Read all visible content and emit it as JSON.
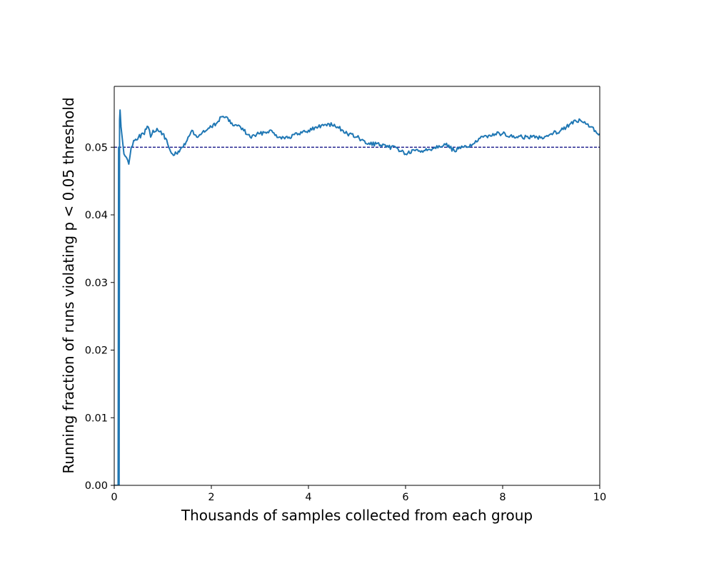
{
  "chart_data": {
    "type": "line",
    "title": "",
    "xlabel": "Thousands of samples collected from each group",
    "ylabel": "Running fraction of runs violating p < 0.05 threshold",
    "xlim": [
      0,
      10
    ],
    "ylim": [
      0,
      0.059
    ],
    "x_ticks": [
      0,
      2,
      4,
      6,
      8,
      10
    ],
    "x_tick_labels": [
      "0",
      "2",
      "4",
      "6",
      "8",
      "10"
    ],
    "y_ticks": [
      0,
      0.01,
      0.02,
      0.03,
      0.04,
      0.05
    ],
    "y_tick_labels": [
      "0.00",
      "0.01",
      "0.02",
      "0.03",
      "0.04",
      "0.05"
    ],
    "grid": false,
    "reference_line": {
      "y": 0.05,
      "style": "dashed",
      "color": "#00007f"
    },
    "series": [
      {
        "color": "#1f77b4",
        "x": [
          0.0,
          0.02,
          0.05,
          0.07,
          0.08,
          0.09,
          0.1,
          0.11,
          0.12,
          0.14,
          0.17,
          0.2,
          0.25,
          0.3,
          0.35,
          0.4,
          0.5,
          0.6,
          0.7,
          0.75,
          0.8,
          0.9,
          1.0,
          1.1,
          1.2,
          1.3,
          1.4,
          1.5,
          1.6,
          1.7,
          1.8,
          1.9,
          2.0,
          2.1,
          2.2,
          2.3,
          2.4,
          2.6,
          2.8,
          3.0,
          3.2,
          3.4,
          3.6,
          3.8,
          4.0,
          4.2,
          4.4,
          4.6,
          4.8,
          5.0,
          5.2,
          5.4,
          5.6,
          5.8,
          6.0,
          6.2,
          6.4,
          6.6,
          6.8,
          7.0,
          7.2,
          7.4,
          7.6,
          7.8,
          8.0,
          8.2,
          8.4,
          8.6,
          8.8,
          9.0,
          9.2,
          9.4,
          9.6,
          9.8,
          10.0
        ],
        "y": [
          0.0,
          0.0,
          0.0,
          0.0,
          0.0,
          0.05,
          0.0,
          0.054,
          0.0555,
          0.053,
          0.051,
          0.049,
          0.0485,
          0.0475,
          0.05,
          0.051,
          0.0515,
          0.052,
          0.053,
          0.0515,
          0.0525,
          0.0525,
          0.052,
          0.0505,
          0.049,
          0.049,
          0.05,
          0.051,
          0.0525,
          0.0515,
          0.052,
          0.0525,
          0.053,
          0.0535,
          0.0545,
          0.0545,
          0.0535,
          0.053,
          0.0515,
          0.052,
          0.0525,
          0.0515,
          0.0515,
          0.052,
          0.0525,
          0.053,
          0.0535,
          0.053,
          0.052,
          0.0515,
          0.0505,
          0.0505,
          0.05,
          0.05,
          0.049,
          0.0495,
          0.0495,
          0.05,
          0.0505,
          0.0495,
          0.05,
          0.0505,
          0.0515,
          0.052,
          0.052,
          0.0515,
          0.0515,
          0.0515,
          0.0515,
          0.052,
          0.0525,
          0.0535,
          0.054,
          0.053,
          0.052
        ]
      }
    ]
  }
}
